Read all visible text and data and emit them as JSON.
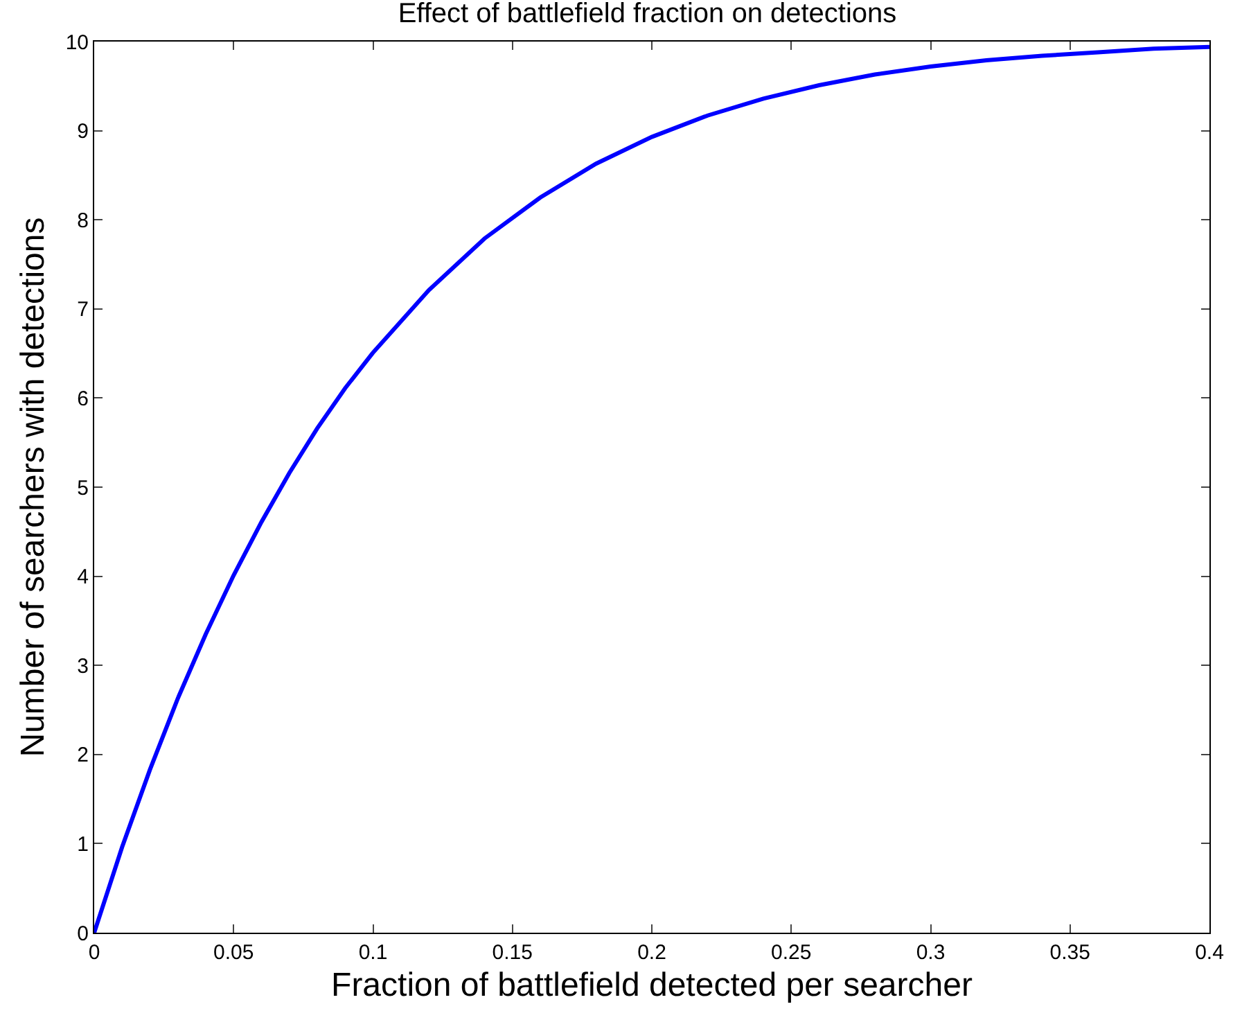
{
  "chart_data": {
    "type": "line",
    "title": "Effect of battlefield fraction on detections",
    "xlabel": "Fraction of battlefield detected per searcher",
    "ylabel": "Number of searchers with detections",
    "x": [
      0,
      0.01,
      0.02,
      0.03,
      0.04,
      0.05,
      0.06,
      0.07,
      0.08,
      0.09,
      0.1,
      0.12,
      0.14,
      0.16,
      0.18,
      0.2,
      0.22,
      0.24,
      0.26,
      0.28,
      0.3,
      0.32,
      0.34,
      0.36,
      0.38,
      0.4
    ],
    "series": [
      {
        "color": "#0000ff",
        "values": [
          0,
          0.96,
          1.83,
          2.63,
          3.35,
          4.01,
          4.61,
          5.16,
          5.66,
          6.11,
          6.51,
          7.21,
          7.79,
          8.25,
          8.63,
          8.93,
          9.17,
          9.36,
          9.51,
          9.63,
          9.72,
          9.79,
          9.84,
          9.88,
          9.92,
          9.94
        ]
      }
    ],
    "xlim": [
      0,
      0.4
    ],
    "xticks": [
      0,
      0.05,
      0.1,
      0.15,
      0.2,
      0.25,
      0.3,
      0.35,
      0.4
    ],
    "ylim": [
      0,
      10
    ],
    "yticks": [
      0,
      1,
      2,
      3,
      4,
      5,
      6,
      7,
      8,
      9,
      10
    ],
    "grid": false,
    "marker": "none",
    "line_style": "solid"
  }
}
